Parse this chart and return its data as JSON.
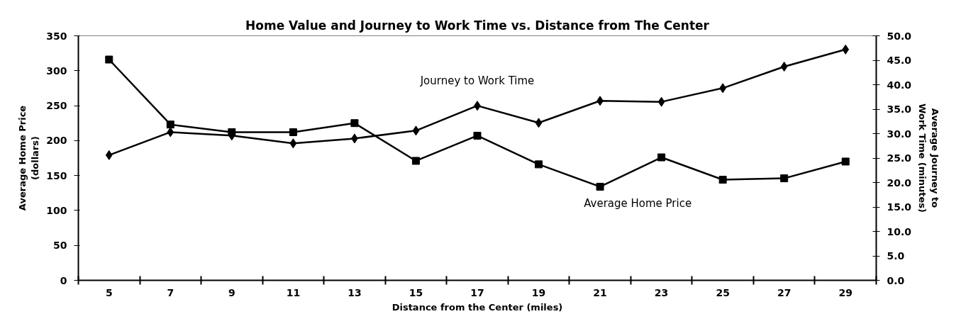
{
  "chart_data": {
    "type": "line",
    "title": "Home Value and Journey to Work Time vs. Distance from The Center",
    "xlabel": "Distance from the Center (miles)",
    "ylabel": "Average Home Price\n(dollars)",
    "y2label": "Average Journey to\nWork Time (minutes)",
    "categories": [
      "5",
      "7",
      "9",
      "11",
      "13",
      "15",
      "17",
      "19",
      "21",
      "23",
      "25",
      "27",
      "29"
    ],
    "ylim": [
      0,
      350
    ],
    "yticks": [
      0,
      50,
      100,
      150,
      200,
      250,
      300,
      350
    ],
    "y2lim": [
      0,
      50
    ],
    "y2ticks": [
      {
        "value": 0,
        "label": "0.0"
      },
      {
        "value": 5,
        "label": "5.0"
      },
      {
        "value": 10,
        "label": "10.0"
      },
      {
        "value": 15,
        "label": "15.0"
      },
      {
        "value": 20,
        "label": "20.0"
      },
      {
        "value": 25,
        "label": "25.0"
      },
      {
        "value": 30,
        "label": "30.0"
      },
      {
        "value": 35,
        "label": "35.0"
      },
      {
        "value": 40,
        "label": "40.0"
      },
      {
        "value": 45,
        "label": "45.0"
      },
      {
        "value": 50,
        "label": "50.0"
      }
    ],
    "grid": false,
    "series": [
      {
        "name": "Average Home Price",
        "color": "#000000",
        "marker": "square",
        "values": [
          316,
          223,
          212,
          212,
          225,
          171,
          207,
          166,
          134,
          176,
          144,
          146,
          170
        ]
      },
      {
        "name": "Journey to Work Time",
        "color": "#000000",
        "marker": "diamond",
        "axis": "y2",
        "values": [
          25.6,
          30.3,
          29.6,
          28.0,
          29.0,
          30.6,
          35.7,
          32.2,
          36.7,
          36.5,
          39.3,
          43.7,
          47.2
        ]
      }
    ]
  }
}
